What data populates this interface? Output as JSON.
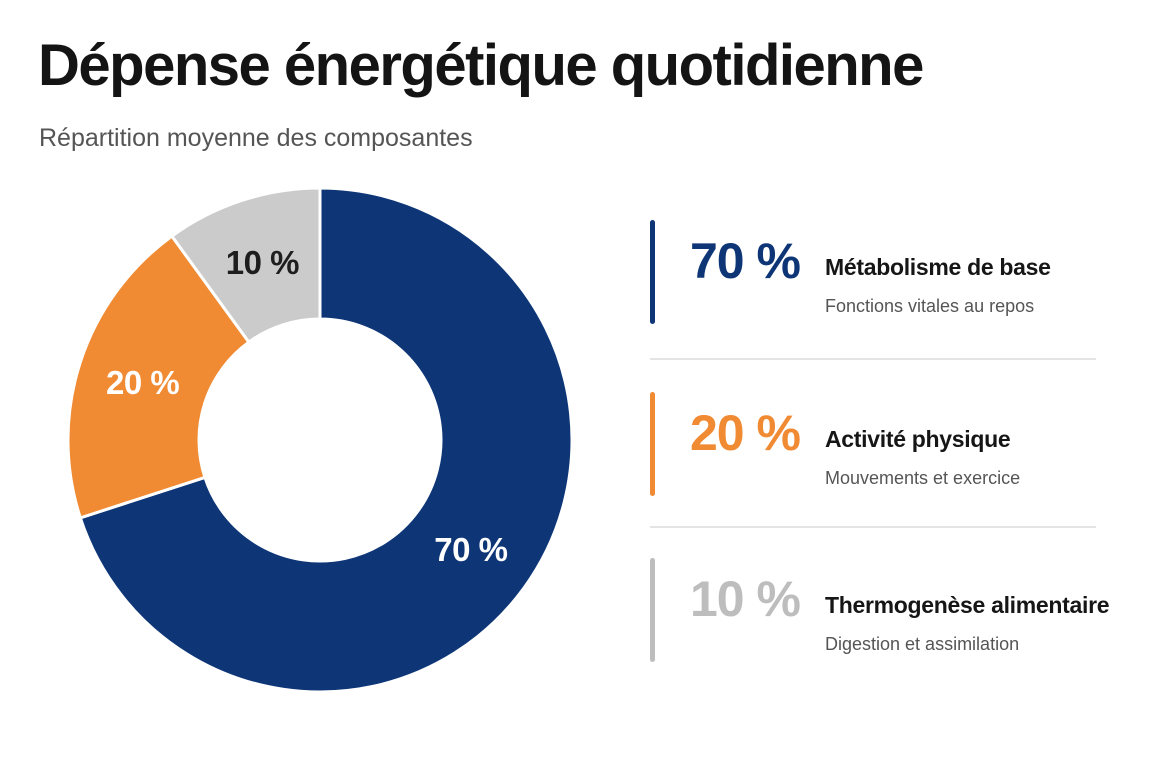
{
  "header": {
    "title": "Dépense énergétique quotidienne",
    "subtitle": "Répartition moyenne des composantes"
  },
  "chart_data": {
    "type": "pie",
    "variant": "donut",
    "title": "Dépense énergétique quotidienne",
    "subtitle": "Répartition moyenne des composantes",
    "categories": [
      "Métabolisme de base",
      "Activité physique",
      "Thermogenèse alimentaire"
    ],
    "values": [
      70,
      20,
      10
    ],
    "unit": "%",
    "colors": [
      "#0e3677",
      "#f08a33",
      "#cbcbcb"
    ],
    "slice_labels": [
      "70 %",
      "20 %",
      "10 %"
    ],
    "slice_label_colors": [
      "#ffffff",
      "#ffffff",
      "#1e1e1e"
    ],
    "legend_placement": "right"
  },
  "legend": {
    "items": [
      {
        "percent": "70 %",
        "name": "Métabolisme de base",
        "description": "Fonctions vitales au repos",
        "color": "#0e3677"
      },
      {
        "percent": "20 %",
        "name": "Activité physique",
        "description": "Mouvements et exercice",
        "color": "#f08a33"
      },
      {
        "percent": "10 %",
        "name": "Thermogenèse alimentaire",
        "description": "Digestion et assimilation",
        "color": "#bdbdbd"
      }
    ]
  }
}
